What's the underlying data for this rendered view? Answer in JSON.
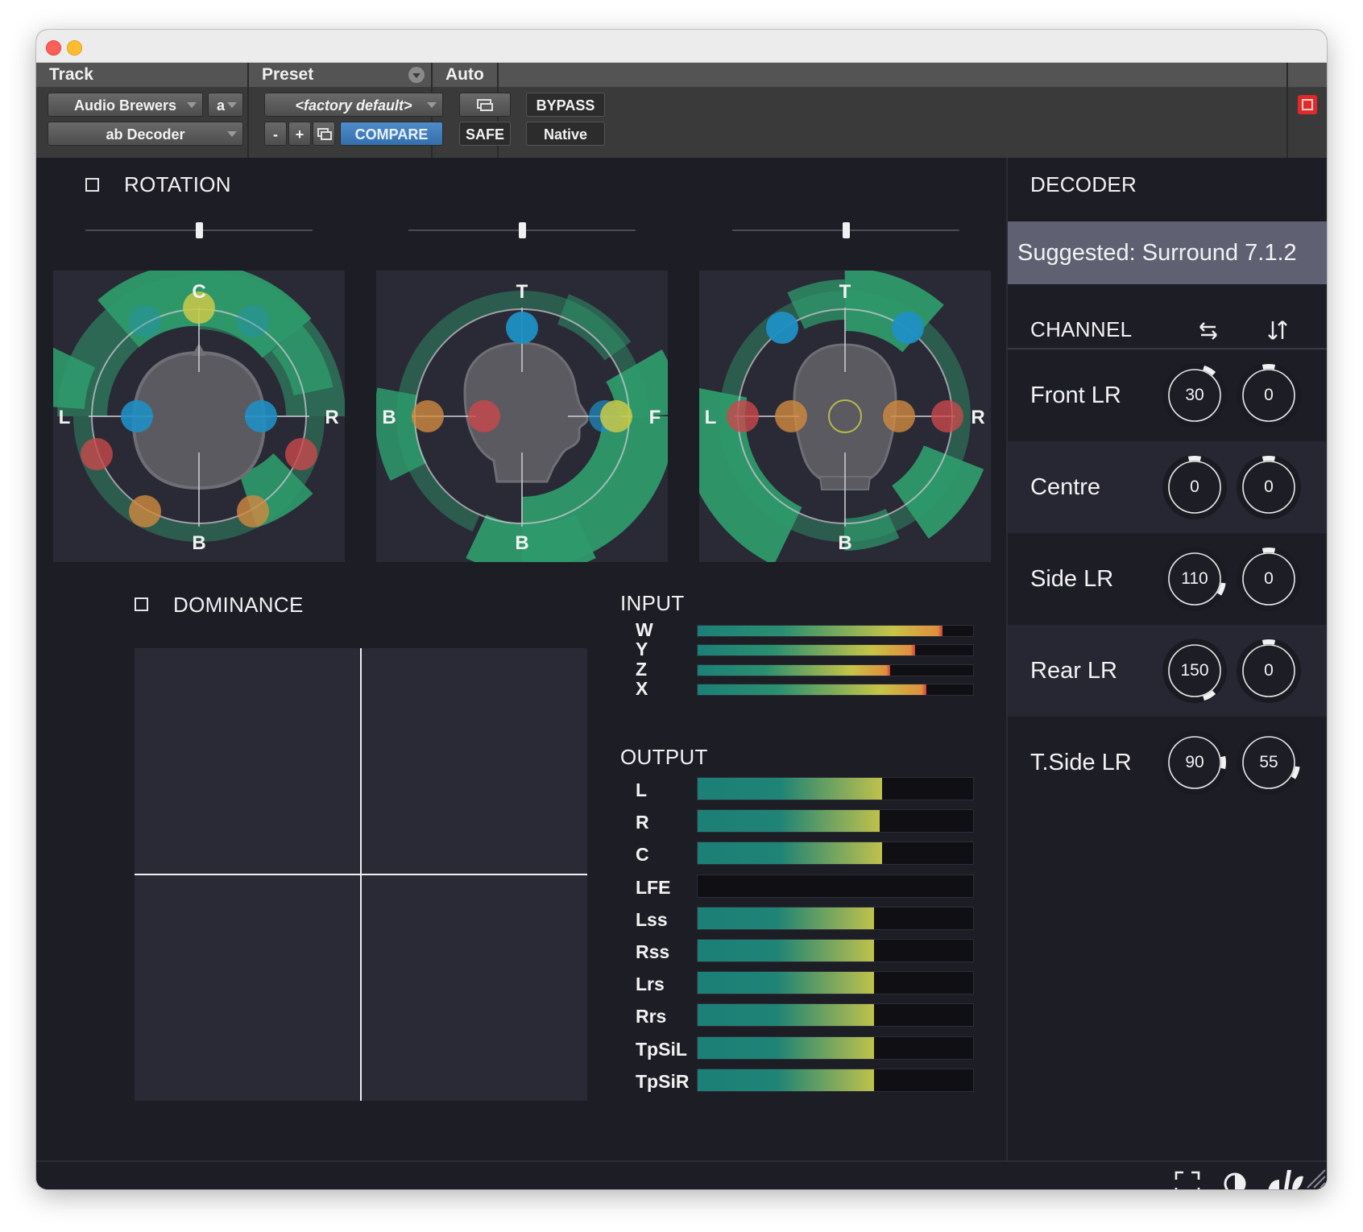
{
  "host": {
    "track_label": "Track",
    "preset_label": "Preset",
    "auto_label": "Auto",
    "track_name": "Audio Brewers",
    "track_slot": "a",
    "plugin_name": "ab Decoder",
    "preset_name": "<factory default>",
    "preset_minus": "-",
    "preset_plus": "+",
    "compare": "COMPARE",
    "safe": "SAFE",
    "bypass": "BYPASS",
    "native": "Native"
  },
  "rotation": {
    "title": "ROTATION",
    "slider_values": [
      0.5,
      0.5,
      0.5
    ],
    "panels": [
      {
        "labels": {
          "top": "C",
          "bottom": "B",
          "left": "L",
          "right": "R"
        }
      },
      {
        "labels": {
          "top": "T",
          "bottom": "B",
          "left": "B",
          "right": "F"
        }
      },
      {
        "labels": {
          "top": "T",
          "bottom": "B",
          "left": "L",
          "right": "R"
        }
      }
    ]
  },
  "dominance": {
    "title": "DOMINANCE"
  },
  "input": {
    "title": "INPUT",
    "channels": [
      {
        "name": "W",
        "level": 0.89
      },
      {
        "name": "Y",
        "level": 0.79
      },
      {
        "name": "Z",
        "level": 0.7
      },
      {
        "name": "X",
        "level": 0.83
      }
    ]
  },
  "output": {
    "title": "OUTPUT",
    "channels": [
      {
        "name": "L",
        "level": 0.67
      },
      {
        "name": "R",
        "level": 0.66
      },
      {
        "name": "C",
        "level": 0.67
      },
      {
        "name": "LFE",
        "level": 0
      },
      {
        "name": "Lss",
        "level": 0.64
      },
      {
        "name": "Rss",
        "level": 0.64
      },
      {
        "name": "Lrs",
        "level": 0.64
      },
      {
        "name": "Rrs",
        "level": 0.64
      },
      {
        "name": "TpSiL",
        "level": 0.64
      },
      {
        "name": "TpSiR",
        "level": 0.64
      }
    ]
  },
  "decoder": {
    "title": "DECODER",
    "suggested": "Suggested: Surround 7.1.2",
    "channel_header": "CHANNEL",
    "header_icons": [
      "swap-horizontal-icon",
      "swap-vertical-icon"
    ],
    "channels": [
      {
        "name": "Front LR",
        "azimuth": "30",
        "elevation": "0"
      },
      {
        "name": "Centre",
        "azimuth": "0",
        "elevation": "0"
      },
      {
        "name": "Side LR",
        "azimuth": "110",
        "elevation": "0"
      },
      {
        "name": "Rear LR",
        "azimuth": "150",
        "elevation": "0"
      },
      {
        "name": "T.Side LR",
        "azimuth": "90",
        "elevation": "55"
      }
    ]
  },
  "footer": {
    "icons": [
      "fullscreen-icon",
      "contrast-icon",
      "audio-brewers-logo"
    ]
  },
  "colors": {
    "background": "#1d1d26",
    "panel": "#2a2a36",
    "sector": "#2e9a6c",
    "speaker_blue": "#1f8fc4",
    "speaker_yellow": "#c9c948",
    "speaker_red": "#c8484c",
    "speaker_orange": "#d18a40",
    "suggest_bg": "#5f6173"
  }
}
